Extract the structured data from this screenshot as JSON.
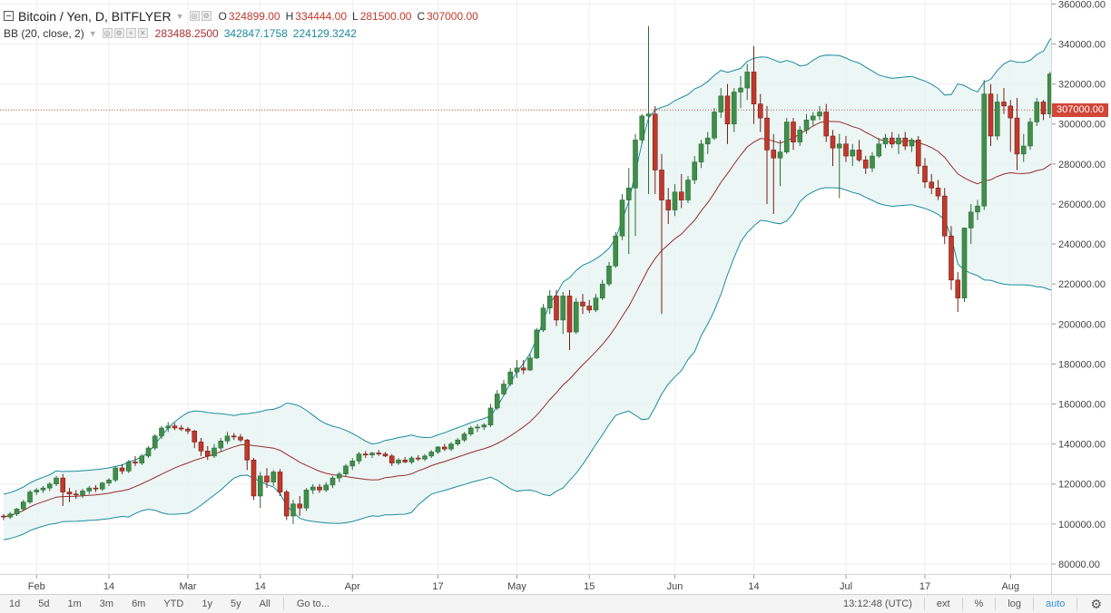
{
  "header": {
    "symbol": "Bitcoin / Yen, D, BITFLYER",
    "ohlc": [
      {
        "k": "O",
        "v": "324899.00"
      },
      {
        "k": "H",
        "v": "334444.00"
      },
      {
        "k": "L",
        "v": "281500.00"
      },
      {
        "k": "C",
        "v": "307000.00"
      }
    ]
  },
  "indicator": {
    "title": "BB (20, close, 2)",
    "basis": "283488.2500",
    "upper": "342847.1758",
    "lower": "224129.3242"
  },
  "colors": {
    "up": "#3f8f4a",
    "down": "#c0392b",
    "basis": "#9b2a2a",
    "band": "#1a8ba0",
    "fill": "#e6f4f2",
    "grid": "#eeeeee",
    "price_line": "#d04637"
  },
  "chart_data": {
    "type": "candlestick",
    "title": "Bitcoin / Yen, D, BITFLYER",
    "ylim": [
      75000,
      362000
    ],
    "yticks": [
      "360000.00",
      "340000.00",
      "320000.00",
      "300000.00",
      "280000.00",
      "260000.00",
      "240000.00",
      "220000.00",
      "200000.00",
      "180000.00",
      "160000.00",
      "140000.00",
      "120000.00",
      "100000.00",
      "80000.00"
    ],
    "xticks": [
      "Feb",
      "14",
      "Mar",
      "14",
      "Apr",
      "17",
      "May",
      "15",
      "Jun",
      "14",
      "Jul",
      "17",
      "Aug"
    ],
    "last_price": "307000.00",
    "ohlc": [
      [
        104000,
        105000,
        102000,
        103500
      ],
      [
        103500,
        106000,
        102500,
        105000
      ],
      [
        105000,
        108000,
        104000,
        107500
      ],
      [
        107500,
        112000,
        106500,
        111000
      ],
      [
        111000,
        117000,
        110000,
        116000
      ],
      [
        116000,
        118000,
        114500,
        117000
      ],
      [
        117000,
        119000,
        115500,
        118000
      ],
      [
        118000,
        121000,
        116500,
        120000
      ],
      [
        120000,
        124000,
        119000,
        123000
      ],
      [
        123000,
        125000,
        109000,
        116000
      ],
      [
        116000,
        118000,
        111000,
        115000
      ],
      [
        115000,
        117000,
        112500,
        114500
      ],
      [
        114500,
        117500,
        113000,
        116500
      ],
      [
        116500,
        119000,
        115000,
        118000
      ],
      [
        118000,
        119500,
        116000,
        117500
      ],
      [
        117500,
        121000,
        116500,
        120500
      ],
      [
        120500,
        123000,
        119000,
        122000
      ],
      [
        122000,
        129000,
        121000,
        128000
      ],
      [
        128000,
        130000,
        125000,
        126500
      ],
      [
        126500,
        132000,
        125500,
        131000
      ],
      [
        131000,
        134000,
        129000,
        130500
      ],
      [
        130500,
        135000,
        129500,
        134000
      ],
      [
        134000,
        139000,
        133000,
        138000
      ],
      [
        138000,
        145000,
        137000,
        144000
      ],
      [
        144000,
        149000,
        142500,
        148000
      ],
      [
        148000,
        151000,
        146000,
        149000
      ],
      [
        149000,
        150500,
        147000,
        148000
      ],
      [
        148000,
        149500,
        146500,
        147500
      ],
      [
        147500,
        148500,
        145000,
        146500
      ],
      [
        146500,
        147000,
        138000,
        141000
      ],
      [
        141000,
        143000,
        134000,
        136500
      ],
      [
        136500,
        139000,
        132000,
        134000
      ],
      [
        134000,
        140000,
        133000,
        138000
      ],
      [
        138000,
        143000,
        136000,
        141500
      ],
      [
        141500,
        146000,
        140000,
        144000
      ],
      [
        144000,
        145500,
        142000,
        143500
      ],
      [
        143500,
        145000,
        141000,
        142000
      ],
      [
        142000,
        142500,
        127000,
        132000
      ],
      [
        132000,
        133000,
        112000,
        114000
      ],
      [
        114000,
        126000,
        108000,
        124000
      ],
      [
        124000,
        128000,
        118000,
        121000
      ],
      [
        121000,
        127000,
        119000,
        126000
      ],
      [
        126000,
        127500,
        114000,
        116000
      ],
      [
        116000,
        117000,
        102000,
        104000
      ],
      [
        104000,
        112000,
        100000,
        110000
      ],
      [
        110000,
        114000,
        104000,
        108000
      ],
      [
        108000,
        118000,
        106500,
        117000
      ],
      [
        117000,
        120000,
        115000,
        118500
      ],
      [
        118500,
        120000,
        115500,
        117000
      ],
      [
        117000,
        121000,
        116000,
        119500
      ],
      [
        119500,
        124000,
        118000,
        123000
      ],
      [
        123000,
        126000,
        121000,
        125000
      ],
      [
        125000,
        130000,
        124000,
        129000
      ],
      [
        129000,
        133000,
        127000,
        131500
      ],
      [
        131500,
        136000,
        130000,
        135000
      ],
      [
        135000,
        136500,
        133000,
        134500
      ],
      [
        134500,
        136000,
        133000,
        135500
      ],
      [
        135500,
        137000,
        134000,
        135000
      ],
      [
        135000,
        136000,
        133500,
        134000
      ],
      [
        134000,
        135000,
        129000,
        130500
      ],
      [
        130500,
        133000,
        129500,
        132000
      ],
      [
        132000,
        133500,
        130500,
        131000
      ],
      [
        131000,
        134000,
        130000,
        133000
      ],
      [
        133000,
        134500,
        131500,
        132500
      ],
      [
        132500,
        135000,
        131500,
        134000
      ],
      [
        134000,
        137000,
        133000,
        136000
      ],
      [
        136000,
        139000,
        135000,
        138500
      ],
      [
        138500,
        140000,
        136500,
        137500
      ],
      [
        137500,
        141000,
        136500,
        140000
      ],
      [
        140000,
        143000,
        139000,
        142000
      ],
      [
        142000,
        146000,
        141000,
        145000
      ],
      [
        145000,
        149000,
        144000,
        148000
      ],
      [
        148000,
        150000,
        146000,
        148500
      ],
      [
        148500,
        150500,
        147000,
        149500
      ],
      [
        149500,
        160000,
        148500,
        158000
      ],
      [
        158000,
        167000,
        157000,
        165000
      ],
      [
        165000,
        172000,
        164000,
        170000
      ],
      [
        170000,
        178000,
        169000,
        176000
      ],
      [
        176000,
        182000,
        173000,
        178000
      ],
      [
        178000,
        182000,
        175000,
        177000
      ],
      [
        177000,
        185000,
        176500,
        183000
      ],
      [
        183000,
        198000,
        182500,
        197000
      ],
      [
        197000,
        210000,
        196000,
        208000
      ],
      [
        208000,
        217000,
        205000,
        214000
      ],
      [
        214000,
        217000,
        199000,
        202000
      ],
      [
        202000,
        216000,
        195000,
        214000
      ],
      [
        214000,
        217000,
        187000,
        196000
      ],
      [
        196000,
        213000,
        195000,
        211000
      ],
      [
        211000,
        215000,
        205000,
        209000
      ],
      [
        209000,
        212000,
        205500,
        207000
      ],
      [
        207000,
        215000,
        206000,
        213000
      ],
      [
        213000,
        222000,
        212000,
        220000
      ],
      [
        220000,
        231000,
        219000,
        229000
      ],
      [
        229000,
        246000,
        228000,
        244000
      ],
      [
        244000,
        265000,
        242000,
        262000
      ],
      [
        262000,
        278000,
        235000,
        268000
      ],
      [
        268000,
        295000,
        244000,
        292000
      ],
      [
        292000,
        305000,
        290000,
        304000
      ],
      [
        304000,
        349000,
        265000,
        305000
      ],
      [
        305000,
        309000,
        265000,
        277000
      ],
      [
        277000,
        285000,
        205000,
        262000
      ],
      [
        262000,
        268000,
        250000,
        257000
      ],
      [
        257000,
        270000,
        254000,
        266000
      ],
      [
        266000,
        275000,
        258000,
        262000
      ],
      [
        262000,
        274000,
        260500,
        272000
      ],
      [
        272000,
        284000,
        270000,
        281000
      ],
      [
        281000,
        292000,
        278000,
        290000
      ],
      [
        290000,
        296000,
        285000,
        293000
      ],
      [
        293000,
        308000,
        292000,
        306000
      ],
      [
        306000,
        318000,
        303000,
        314000
      ],
      [
        314000,
        320000,
        290000,
        300000
      ],
      [
        300000,
        318000,
        296000,
        316000
      ],
      [
        316000,
        324000,
        308000,
        318000
      ],
      [
        318000,
        330000,
        312000,
        326000
      ],
      [
        326000,
        339000,
        300000,
        310000
      ],
      [
        310000,
        315000,
        296000,
        303000
      ],
      [
        303000,
        309000,
        260000,
        287000
      ],
      [
        287000,
        295000,
        255000,
        283000
      ],
      [
        283000,
        292000,
        269000,
        286000
      ],
      [
        286000,
        303000,
        285000,
        301000
      ],
      [
        301000,
        303000,
        287000,
        291000
      ],
      [
        291000,
        299000,
        289000,
        297000
      ],
      [
        297000,
        305000,
        295000,
        302000
      ],
      [
        302000,
        306000,
        299000,
        304000
      ],
      [
        304000,
        309000,
        302000,
        306000
      ],
      [
        306000,
        310000,
        291000,
        294000
      ],
      [
        294000,
        297000,
        279000,
        288000
      ],
      [
        288000,
        295000,
        263000,
        290000
      ],
      [
        290000,
        294000,
        281000,
        284000
      ],
      [
        284000,
        290000,
        279000,
        287000
      ],
      [
        287000,
        292000,
        281000,
        282000
      ],
      [
        282000,
        284000,
        275000,
        278000
      ],
      [
        278000,
        286000,
        276000,
        284000
      ],
      [
        284000,
        293000,
        283000,
        290000
      ],
      [
        290000,
        295000,
        288000,
        293000
      ],
      [
        293000,
        296000,
        288000,
        290000
      ],
      [
        290000,
        295000,
        285000,
        293000
      ],
      [
        293000,
        296000,
        287000,
        289000
      ],
      [
        289000,
        293000,
        286000,
        292000
      ],
      [
        292000,
        294000,
        275000,
        279000
      ],
      [
        279000,
        283000,
        268000,
        271000
      ],
      [
        271000,
        275000,
        265000,
        268000
      ],
      [
        268000,
        272000,
        262000,
        264000
      ],
      [
        264000,
        268000,
        240000,
        244000
      ],
      [
        244000,
        249000,
        217000,
        222000
      ],
      [
        222000,
        226000,
        206000,
        213000
      ],
      [
        213000,
        248000,
        211000,
        248000
      ],
      [
        248000,
        260000,
        240000,
        256000
      ],
      [
        256000,
        262000,
        252000,
        259000
      ],
      [
        259000,
        322000,
        257000,
        315000
      ],
      [
        315000,
        320000,
        289000,
        294000
      ],
      [
        294000,
        315000,
        292000,
        311000
      ],
      [
        311000,
        318000,
        305000,
        309000
      ],
      [
        309000,
        312000,
        286000,
        303000
      ],
      [
        303000,
        313000,
        277000,
        285000
      ],
      [
        285000,
        295000,
        281000,
        289000
      ],
      [
        289000,
        303000,
        287000,
        301000
      ],
      [
        301000,
        313000,
        299000,
        311000
      ],
      [
        311000,
        312000,
        302000,
        305000
      ],
      [
        305000,
        326000,
        303000,
        325000
      ],
      [
        325000,
        334000,
        281000,
        307000
      ]
    ]
  },
  "bottom_bar": {
    "ranges": [
      "1d",
      "5d",
      "1m",
      "3m",
      "6m",
      "YTD",
      "1y",
      "5y",
      "All"
    ],
    "goto": "Go to...",
    "time": "13:12:48 (UTC)",
    "ext": "ext",
    "percent": "%",
    "log": "log",
    "auto": "auto"
  }
}
